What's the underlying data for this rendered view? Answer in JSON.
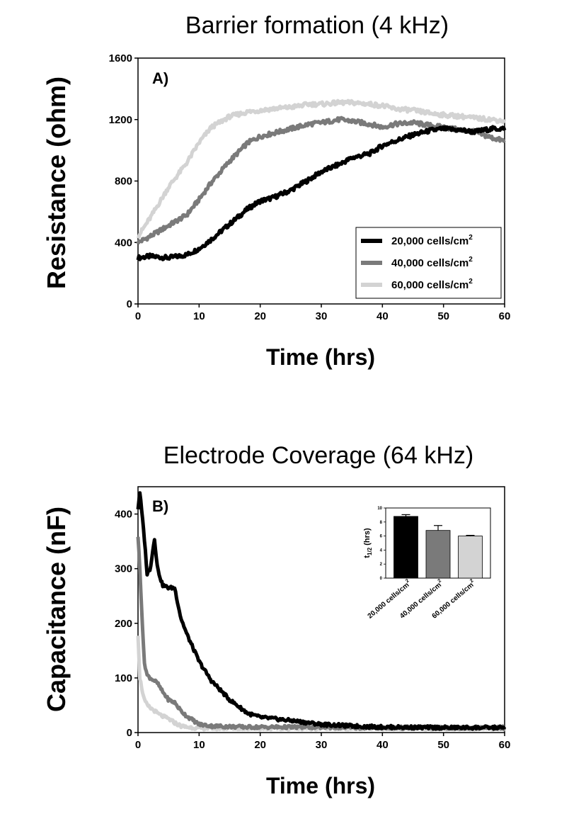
{
  "chart_data": [
    {
      "type": "line",
      "panel_label": "A)",
      "title": "Barrier formation (4 kHz)",
      "xlabel": "Time (hrs)",
      "ylabel": "Resistance (ohm)",
      "xlim": [
        0,
        60
      ],
      "ylim": [
        0,
        1600
      ],
      "xticks": [
        0,
        10,
        20,
        30,
        40,
        50,
        60
      ],
      "yticks": [
        0,
        400,
        800,
        1200,
        1600
      ],
      "legend_position": "bottom-right",
      "x": [
        0,
        2,
        5,
        8,
        10,
        12,
        15,
        18,
        20,
        22,
        25,
        28,
        30,
        33,
        35,
        38,
        40,
        42,
        45,
        48,
        50,
        53,
        55,
        58,
        60
      ],
      "series": [
        {
          "name": "20,000 cells/cm",
          "sup": "2",
          "color": "#000000",
          "values": [
            300,
            310,
            300,
            320,
            360,
            420,
            520,
            620,
            670,
            690,
            740,
            810,
            860,
            910,
            950,
            980,
            1030,
            1060,
            1100,
            1130,
            1140,
            1130,
            1120,
            1140,
            1140
          ]
        },
        {
          "name": "40,000 cells/cm",
          "sup": "2",
          "color": "#7a7a7a",
          "values": [
            400,
            440,
            510,
            580,
            680,
            790,
            930,
            1050,
            1090,
            1110,
            1140,
            1170,
            1180,
            1200,
            1190,
            1170,
            1150,
            1170,
            1180,
            1160,
            1150,
            1130,
            1120,
            1080,
            1060
          ]
        },
        {
          "name": "60,000 cells/cm",
          "sup": "2",
          "color": "#d3d3d3",
          "values": [
            440,
            560,
            760,
            920,
            1050,
            1150,
            1220,
            1250,
            1260,
            1270,
            1280,
            1300,
            1300,
            1310,
            1310,
            1300,
            1290,
            1270,
            1260,
            1240,
            1230,
            1220,
            1210,
            1200,
            1190
          ]
        }
      ]
    },
    {
      "type": "line",
      "panel_label": "B)",
      "title": "Electrode Coverage (64 kHz)",
      "xlabel": "Time (hrs)",
      "ylabel": "Capacitance (nF)",
      "xlim": [
        0,
        60
      ],
      "ylim": [
        0,
        450
      ],
      "xticks": [
        0,
        10,
        20,
        30,
        40,
        50,
        60
      ],
      "yticks": [
        0,
        100,
        200,
        300,
        400
      ],
      "x": [
        0,
        0.3,
        1,
        1.5,
        2,
        2.7,
        3.2,
        4,
        5,
        6,
        7,
        8,
        10,
        12,
        15,
        18,
        20,
        25,
        30,
        35,
        40,
        50,
        60
      ],
      "series": [
        {
          "name": "20,000 cells/cm2",
          "color": "#000000",
          "values": [
            410,
            440,
            360,
            290,
            300,
            355,
            300,
            270,
            265,
            265,
            210,
            180,
            130,
            95,
            60,
            35,
            28,
            22,
            15,
            12,
            10,
            9,
            9
          ]
        },
        {
          "name": "40,000 cells/cm2",
          "color": "#7a7a7a",
          "values": [
            360,
            300,
            130,
            105,
            100,
            95,
            90,
            75,
            60,
            55,
            40,
            30,
            15,
            12,
            11,
            10,
            10,
            10,
            10,
            9,
            9,
            9,
            9
          ]
        },
        {
          "name": "60,000 cells/cm2",
          "color": "#d3d3d3",
          "values": [
            180,
            100,
            60,
            50,
            45,
            40,
            35,
            30,
            25,
            18,
            12,
            10,
            8,
            8,
            8,
            8,
            8,
            8,
            8,
            8,
            8,
            8,
            8
          ]
        }
      ],
      "inset": {
        "type": "bar",
        "ylabel": "t",
        "ylabel_sub": "1/2",
        "ylabel_suffix": " (hrs)",
        "ylim": [
          0,
          10
        ],
        "yticks": [
          0,
          2,
          4,
          6,
          8,
          10
        ],
        "categories": [
          "20,000 cells/cm",
          "40,000 cells/cm",
          "60,000 cells/cm"
        ],
        "category_sup": "2",
        "values": [
          8.8,
          6.8,
          6.0
        ],
        "errors": [
          0.25,
          0.7,
          0.1
        ],
        "colors": [
          "#000000",
          "#7a7a7a",
          "#d3d3d3"
        ]
      }
    }
  ]
}
